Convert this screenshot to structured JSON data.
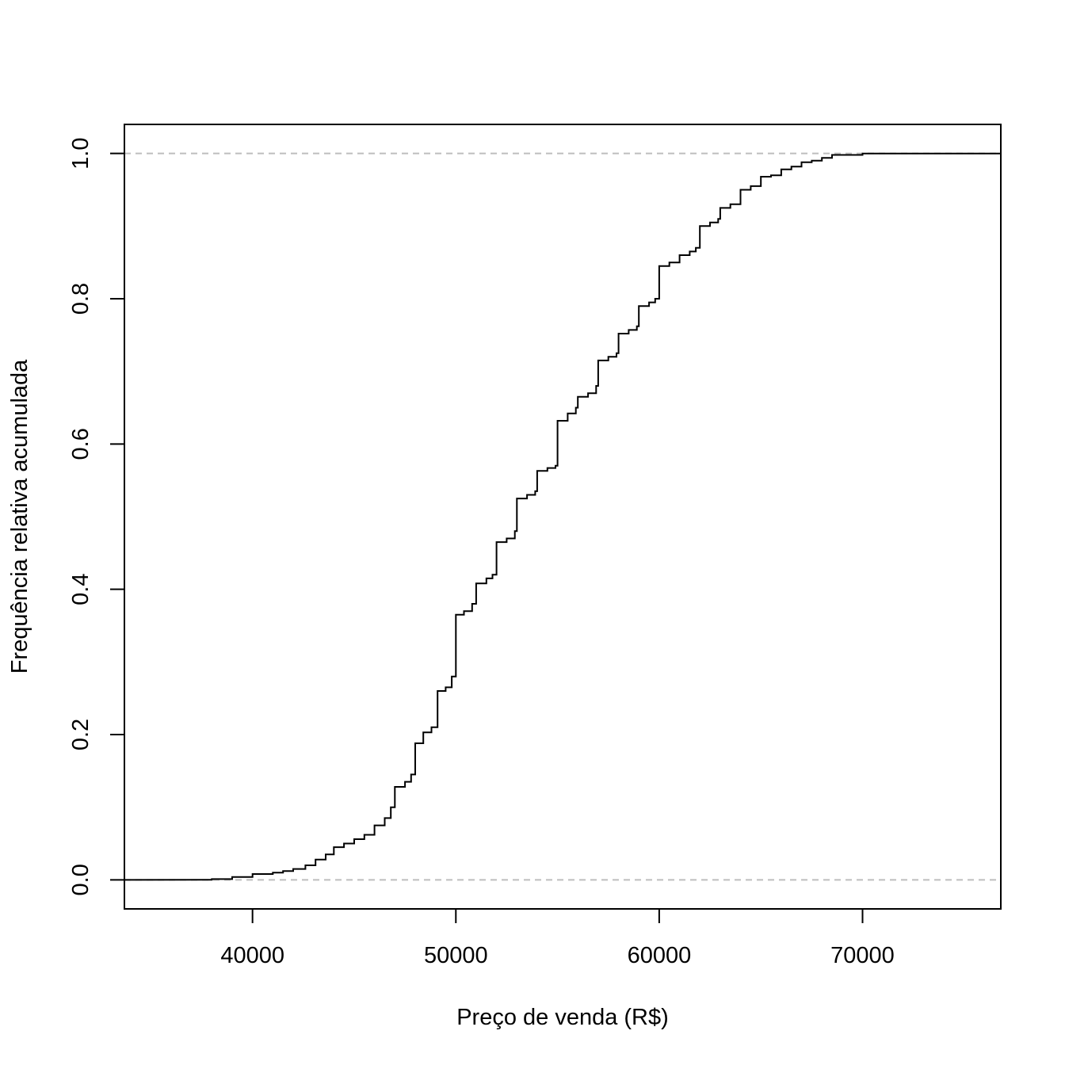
{
  "chart_data": {
    "type": "line",
    "step": true,
    "title": "",
    "xlabel": "Preço de venda (R$)",
    "ylabel": "Frequência relativa acumulada",
    "xlim": [
      33700,
      76800
    ],
    "ylim": [
      -0.04,
      1.04
    ],
    "grid": false,
    "xticks": [
      40000,
      50000,
      60000,
      70000
    ],
    "xtick_labels": [
      "40000",
      "50000",
      "60000",
      "70000"
    ],
    "yticks": [
      0.0,
      0.2,
      0.4,
      0.6,
      0.8,
      1.0
    ],
    "ytick_labels": [
      "0.0",
      "0.2",
      "0.4",
      "0.6",
      "0.8",
      "1.0"
    ],
    "reference_lines": [
      {
        "y": 0.0,
        "style": "dashed",
        "color": "#bebebe"
      },
      {
        "y": 1.0,
        "style": "dashed",
        "color": "#bebebe"
      }
    ],
    "series": [
      {
        "color": "#000000",
        "x": [
          38000,
          39000,
          40000,
          41000,
          41500,
          42000,
          42600,
          43100,
          43600,
          44000,
          44500,
          45000,
          45500,
          46000,
          46500,
          46800,
          47000,
          47500,
          47800,
          48000,
          48400,
          48800,
          49100,
          49500,
          49800,
          50000,
          50400,
          50800,
          51000,
          51500,
          51800,
          52000,
          52500,
          52900,
          53000,
          53500,
          53900,
          54000,
          54500,
          54900,
          55000,
          55500,
          55900,
          56000,
          56500,
          56900,
          57000,
          57500,
          57900,
          58000,
          58500,
          58900,
          59000,
          59500,
          59800,
          60000,
          60500,
          61000,
          61500,
          61800,
          62000,
          62500,
          62900,
          63000,
          63500,
          64000,
          64500,
          65000,
          65500,
          66000,
          66500,
          67000,
          67500,
          68000,
          68500,
          70000,
          72500,
          76800
        ],
        "y": [
          0.001,
          0.004,
          0.008,
          0.01,
          0.012,
          0.015,
          0.02,
          0.028,
          0.035,
          0.045,
          0.05,
          0.056,
          0.062,
          0.075,
          0.085,
          0.1,
          0.128,
          0.135,
          0.145,
          0.188,
          0.203,
          0.21,
          0.26,
          0.265,
          0.28,
          0.365,
          0.37,
          0.38,
          0.408,
          0.415,
          0.42,
          0.465,
          0.47,
          0.48,
          0.525,
          0.53,
          0.535,
          0.563,
          0.567,
          0.57,
          0.632,
          0.642,
          0.65,
          0.665,
          0.67,
          0.68,
          0.715,
          0.72,
          0.725,
          0.752,
          0.757,
          0.762,
          0.79,
          0.795,
          0.8,
          0.845,
          0.85,
          0.86,
          0.865,
          0.87,
          0.9,
          0.905,
          0.91,
          0.925,
          0.93,
          0.95,
          0.955,
          0.968,
          0.97,
          0.978,
          0.982,
          0.988,
          0.99,
          0.994,
          0.998,
          1.0,
          1.0,
          1.0
        ]
      }
    ]
  }
}
